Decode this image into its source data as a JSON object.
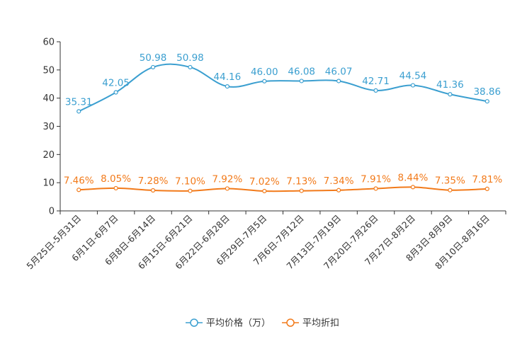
{
  "chart_data": {
    "type": "line",
    "title": "",
    "xlabel": "",
    "ylabel": "",
    "ylim": [
      0,
      60
    ],
    "yticks": [
      0,
      10,
      20,
      30,
      40,
      50,
      60
    ],
    "grid": false,
    "legend_position": "bottom-center",
    "categories": [
      "5月25日-5月31日",
      "6月1日-6月7日",
      "6月8日-6月14日",
      "6月15日-6月21日",
      "6月22日-6月28日",
      "6月29日-7月5日",
      "7月6日-7月12日",
      "7月13日-7月19日",
      "7月20日-7月26日",
      "7月27日-8月2日",
      "8月3日-8月9日",
      "8月10日-8月16日"
    ],
    "series": [
      {
        "name": "平均价格（万）",
        "color": "#3b9fd0",
        "values": [
          35.31,
          42.05,
          50.98,
          50.98,
          44.16,
          46.0,
          46.08,
          46.07,
          42.71,
          44.54,
          41.36,
          38.86
        ],
        "labels": [
          "35.31",
          "42.05",
          "50.98",
          "50.98",
          "44.16",
          "46.00",
          "46.08",
          "46.07",
          "42.71",
          "44.54",
          "41.36",
          "38.86"
        ]
      },
      {
        "name": "平均折扣",
        "color": "#f27a1a",
        "values": [
          7.46,
          8.05,
          7.28,
          7.1,
          7.92,
          7.02,
          7.13,
          7.34,
          7.91,
          8.44,
          7.35,
          7.81
        ],
        "labels": [
          "7.46%",
          "8.05%",
          "7.28%",
          "7.10%",
          "7.92%",
          "7.02%",
          "7.13%",
          "7.34%",
          "7.91%",
          "8.44%",
          "7.35%",
          "7.81%"
        ]
      }
    ]
  }
}
